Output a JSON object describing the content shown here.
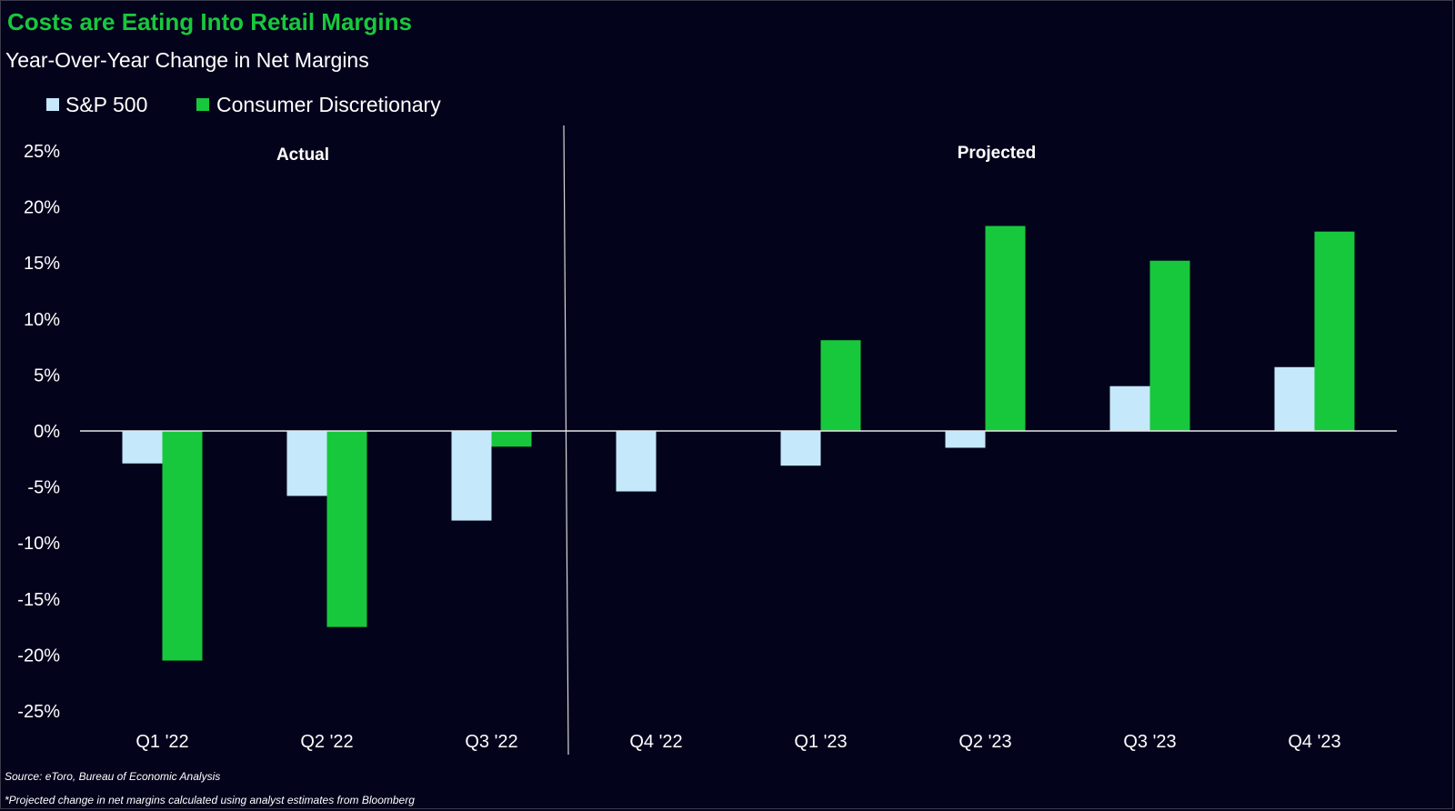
{
  "chart_data": {
    "type": "bar",
    "title": "Costs are Eating Into Retail Margins",
    "subtitle": "Year-Over-Year Change in Net Margins",
    "categories": [
      "Q1 '22",
      "Q2 '22",
      "Q3 '22",
      "Q4 '22",
      "Q1 '23",
      "Q2 '23",
      "Q3 '23",
      "Q4 '23"
    ],
    "series": [
      {
        "name": "S&P 500",
        "color": "#c5e8fb",
        "values": [
          -2.9,
          -5.8,
          -8.0,
          -5.4,
          -3.1,
          -1.5,
          4.0,
          5.7
        ]
      },
      {
        "name": "Consumer Discretionary",
        "color": "#18c83c",
        "values": [
          -20.5,
          -17.5,
          -1.4,
          null,
          8.1,
          18.3,
          15.2,
          17.8
        ]
      }
    ],
    "ylim": [
      -25,
      25
    ],
    "yticks": [
      25,
      20,
      15,
      10,
      5,
      0,
      -5,
      -10,
      -15,
      -20,
      -25
    ],
    "ytick_format": "percent",
    "legend_position": "top-left",
    "grid": false,
    "regions": [
      {
        "label": "Actual",
        "categories": [
          "Q1 '22",
          "Q2 '22",
          "Q3 '22"
        ]
      },
      {
        "label": "Projected",
        "categories": [
          "Q4 '22",
          "Q1 '23",
          "Q2 '23",
          "Q3 '23",
          "Q4 '23"
        ]
      }
    ],
    "source": "Source: eToro, Bureau of Economic Analysis",
    "footnote": "*Projected change in net margins calculated using analyst estimates from Bloomberg"
  }
}
